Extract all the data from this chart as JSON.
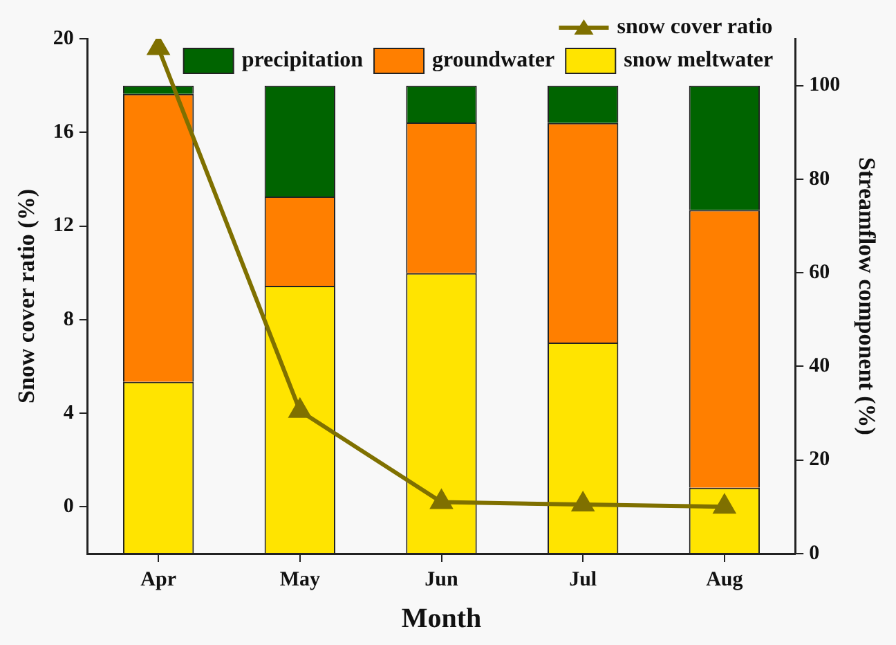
{
  "chart_data": {
    "type": "bar",
    "stacked": true,
    "categories": [
      "Apr",
      "May",
      "Jun",
      "Jul",
      "Aug"
    ],
    "xlabel": "Month",
    "ylabel": "Snow cover ratio (%)",
    "y2label": "Streamflow component (%)",
    "ylim": [
      -2,
      20
    ],
    "yticks": [
      0,
      4,
      8,
      12,
      16,
      20
    ],
    "y2lim": [
      0,
      110
    ],
    "y2ticks": [
      0,
      20,
      40,
      60,
      80,
      100
    ],
    "legend": "top right",
    "marker": "triangle",
    "series": [
      {
        "name": "snow meltwater",
        "color": "#ffe400",
        "axis": "y2",
        "values": [
          36.7,
          57.2,
          59.9,
          45.1,
          14.1
        ]
      },
      {
        "name": "groundwater",
        "color": "#ff7f00",
        "axis": "y2",
        "values": [
          61.5,
          19.1,
          32.2,
          46.9,
          59.3
        ]
      },
      {
        "name": "precipitation",
        "color": "#006400",
        "axis": "y2",
        "values": [
          1.8,
          23.7,
          7.9,
          8.0,
          26.6
        ]
      },
      {
        "name": "snow cover ratio",
        "type": "line",
        "color": "#7f7000",
        "values": [
          19.6,
          4.1,
          0.2,
          0.1,
          0.0
        ]
      }
    ]
  }
}
